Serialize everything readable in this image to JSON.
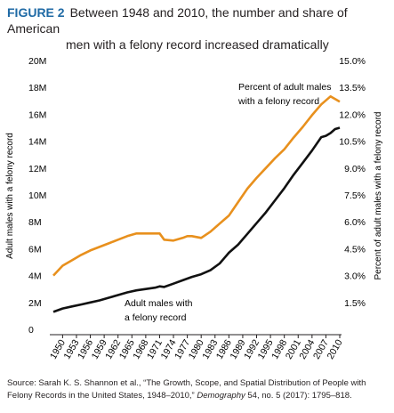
{
  "figure": {
    "label": "FIGURE 2",
    "title_line1": "Between 1948 and 2010, the number and share of American",
    "title_line2": "men with a felony record increased dramatically"
  },
  "source": {
    "prefix": "Source: Sarah K. S. Shannon et al., “The Growth, Scope, and Spatial Distribution of People with Felony Records in the United States, 1948–2010,”",
    "journal": "Demography",
    "suffix": "54, no. 5 (2017): 1795–818."
  },
  "colors": {
    "count_line": "#111111",
    "percent_line": "#e8901d",
    "axis": "#231f20",
    "figure_label": "#1f6aa5"
  },
  "chart_data": {
    "type": "line",
    "x_tick_labels": [
      "1950",
      "1953",
      "1956",
      "1959",
      "1962",
      "1965",
      "1968",
      "1971",
      "1974",
      "1977",
      "1980",
      "1983",
      "1986",
      "1989",
      "1992",
      "1995",
      "1998",
      "2001",
      "2004",
      "2007",
      "2010"
    ],
    "xlim": [
      1948,
      2010
    ],
    "left_axis": {
      "label": "Adult males with a felony record",
      "ylim": [
        0,
        20000000
      ],
      "tick_values": [
        0,
        2000000,
        4000000,
        6000000,
        8000000,
        10000000,
        12000000,
        14000000,
        16000000,
        18000000,
        20000000
      ],
      "tick_labels": [
        "0",
        "2M",
        "4M",
        "6M",
        "8M",
        "10M",
        "12M",
        "14M",
        "16M",
        "18M",
        "20M"
      ]
    },
    "right_axis": {
      "label": "Percent of adult males with a felony record",
      "ylim": [
        0,
        15
      ],
      "tick_values": [
        1.5,
        3,
        4.5,
        6,
        7.5,
        9,
        10.5,
        12,
        13.5,
        15
      ],
      "tick_labels": [
        "1.5%",
        "3.0%",
        "4.5%",
        "6.0%",
        "7.5%",
        "9.0%",
        "10.5%",
        "12.0%",
        "13.5%",
        "15.0%"
      ]
    },
    "series": [
      {
        "name": "Adult males with a felony record",
        "axis": "left",
        "x": [
          1948,
          1950,
          1952,
          1954,
          1956,
          1958,
          1960,
          1962,
          1964,
          1966,
          1968,
          1970,
          1971,
          1972,
          1974,
          1976,
          1978,
          1980,
          1982,
          1984,
          1986,
          1988,
          1990,
          1992,
          1994,
          1996,
          1998,
          2000,
          2002,
          2004,
          2006,
          2007,
          2008,
          2009,
          2010
        ],
        "y": [
          1300000,
          1550000,
          1700000,
          1850000,
          2000000,
          2150000,
          2350000,
          2550000,
          2750000,
          2900000,
          3000000,
          3100000,
          3200000,
          3150000,
          3400000,
          3650000,
          3900000,
          4100000,
          4400000,
          4900000,
          5700000,
          6300000,
          7100000,
          7900000,
          8700000,
          9600000,
          10500000,
          11500000,
          12400000,
          13300000,
          14300000,
          14400000,
          14600000,
          14900000,
          15000000
        ]
      },
      {
        "name": "Percent of adult males with a felony record",
        "axis": "right",
        "x": [
          1948,
          1950,
          1952,
          1954,
          1956,
          1958,
          1960,
          1962,
          1964,
          1966,
          1968,
          1970,
          1971,
          1972,
          1974,
          1976,
          1977,
          1978,
          1980,
          1982,
          1984,
          1986,
          1988,
          1990,
          1992,
          1994,
          1996,
          1998,
          2000,
          2002,
          2004,
          2006,
          2008,
          2009,
          2010
        ],
        "y": [
          3.0,
          3.55,
          3.85,
          4.15,
          4.4,
          4.6,
          4.8,
          5.0,
          5.2,
          5.35,
          5.35,
          5.35,
          5.35,
          5.0,
          4.95,
          5.1,
          5.2,
          5.2,
          5.1,
          5.45,
          5.9,
          6.35,
          7.1,
          7.85,
          8.45,
          9.0,
          9.55,
          10.05,
          10.7,
          11.3,
          11.95,
          12.55,
          13.0,
          12.85,
          12.7
        ]
      }
    ],
    "annotations": [
      {
        "series": 1,
        "line1": "Percent of adult males",
        "line2": "with a felony record"
      },
      {
        "series": 0,
        "line1": "Adult males with",
        "line2": "a felony record"
      }
    ],
    "grid": false
  }
}
